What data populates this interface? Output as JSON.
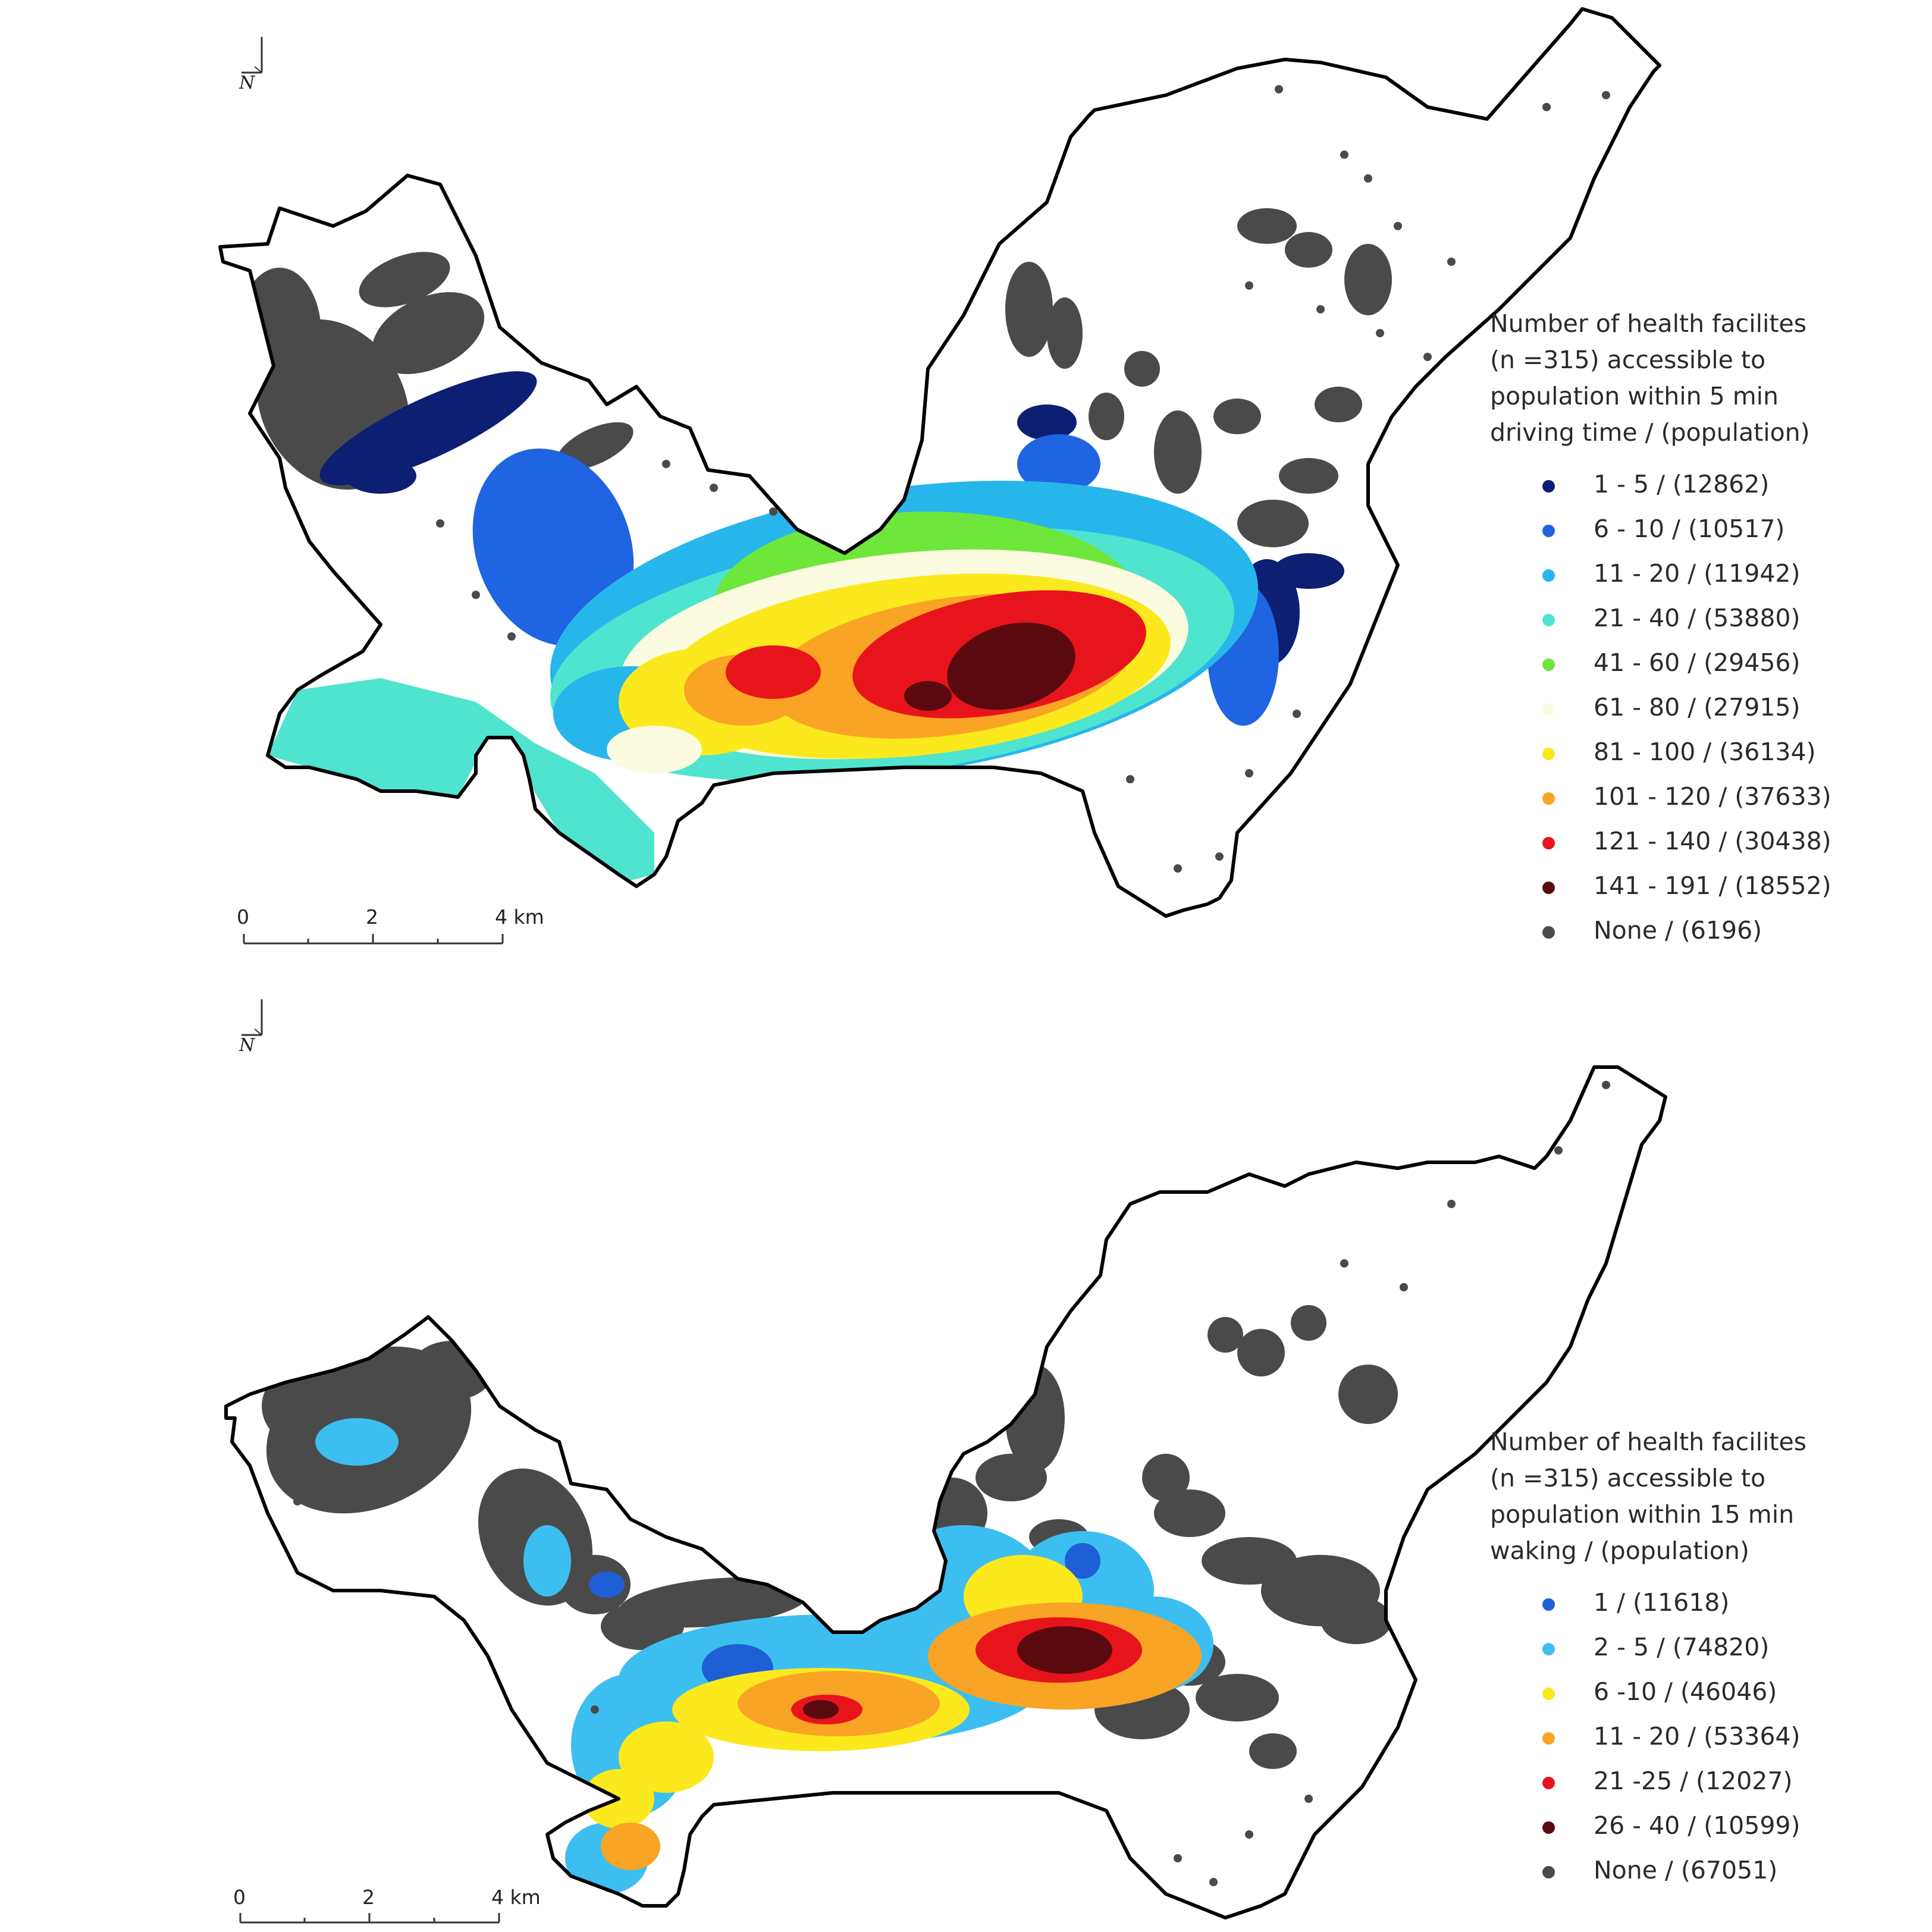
{
  "maps": [
    {
      "id": "driving-5min",
      "north_label": "N",
      "scale": {
        "ticks": [
          "0",
          "2",
          "4 km"
        ]
      },
      "legend": {
        "title_lines": [
          "Number of health facilites",
          "(n =315) accessible to",
          "population within 5 min",
          "driving time / (population)"
        ],
        "items": [
          {
            "label": "1 - 5 / (12862)",
            "color": "#0d1f73"
          },
          {
            "label": "6 - 10 / (10517)",
            "color": "#1f64e0"
          },
          {
            "label": "11 - 20 / (11942)",
            "color": "#27b6ec"
          },
          {
            "label": "21 - 40 / (53880)",
            "color": "#4fe4cf"
          },
          {
            "label": "41 - 60 / (29456)",
            "color": "#6ee63a"
          },
          {
            "label": "61 - 80 / (27915)",
            "color": "#fbfbe0"
          },
          {
            "label": "81 - 100 / (36134)",
            "color": "#fbe91e"
          },
          {
            "label": "101 - 120 / (37633)",
            "color": "#f9a424"
          },
          {
            "label": "121 - 140 / (30438)",
            "color": "#e8141c"
          },
          {
            "label": "141 - 191 / (18552)",
            "color": "#5a0a0e"
          },
          {
            "label": "None / (6196)",
            "color": "#4a4a4a"
          }
        ]
      }
    },
    {
      "id": "walking-15min",
      "north_label": "N",
      "scale": {
        "ticks": [
          "0",
          "2",
          "4 km"
        ]
      },
      "legend": {
        "title_lines": [
          "Number of health facilites",
          "(n =315) accessible to",
          "population within 15 min",
          "waking / (population)"
        ],
        "items": [
          {
            "label": "1 / (11618)",
            "color": "#1f5fd6"
          },
          {
            "label": "2 - 5 / (74820)",
            "color": "#3cbff0"
          },
          {
            "label": "6 -10 / (46046)",
            "color": "#fbe91e"
          },
          {
            "label": "11 - 20 / (53364)",
            "color": "#f9a424"
          },
          {
            "label": "21 -25 / (12027)",
            "color": "#e8141c"
          },
          {
            "label": "26 - 40 / (10599)",
            "color": "#5a0a0e"
          },
          {
            "label": "None / (67051)",
            "color": "#4a4a4a"
          }
        ]
      }
    }
  ]
}
